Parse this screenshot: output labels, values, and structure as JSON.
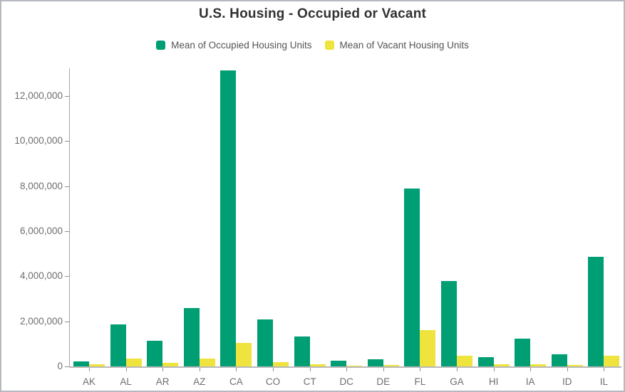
{
  "window_title": "U.S. Housing - Occupied or Vacant",
  "legend": {
    "items": [
      {
        "label": "Mean of Occupied Housing Units",
        "color": "#009E73"
      },
      {
        "label": "Mean of Vacant Housing Units",
        "color": "#EFE33E"
      }
    ]
  },
  "colors": {
    "occupied": "#009E73",
    "vacant": "#EFE33E",
    "axis_line": "#a3a3a3",
    "tick": "#8f8f8f",
    "axis_text": "#6e6e6e",
    "title_text": "#323232"
  },
  "chart_data": {
    "type": "bar",
    "title": "U.S. Housing - Occupied or Vacant",
    "xlabel": "",
    "ylabel": "",
    "grid": false,
    "legend_position": "top",
    "ylim": [
      0,
      13500000
    ],
    "yticks": [
      0,
      2000000,
      4000000,
      6000000,
      8000000,
      10000000,
      12000000
    ],
    "ytick_labels": [
      "0",
      "2,000,000",
      "4,000,000",
      "6,000,000",
      "8,000,000",
      "10,000,000",
      "12,000,000"
    ],
    "categories": [
      "AK",
      "AL",
      "AR",
      "AZ",
      "CA",
      "CO",
      "CT",
      "DC",
      "DE",
      "FL",
      "GA",
      "HI",
      "IA",
      "ID",
      "IL"
    ],
    "series": [
      {
        "name": "Mean of Occupied Housing Units",
        "color": "#009E73",
        "values": [
          220000,
          1850000,
          1130000,
          2580000,
          13150000,
          2100000,
          1340000,
          250000,
          330000,
          7900000,
          3800000,
          410000,
          1240000,
          550000,
          4850000
        ]
      },
      {
        "name": "Mean of Vacant Housing Units",
        "color": "#EFE33E",
        "values": [
          80000,
          340000,
          160000,
          350000,
          1050000,
          200000,
          100000,
          30000,
          50000,
          1600000,
          480000,
          80000,
          110000,
          50000,
          460000
        ]
      }
    ]
  }
}
